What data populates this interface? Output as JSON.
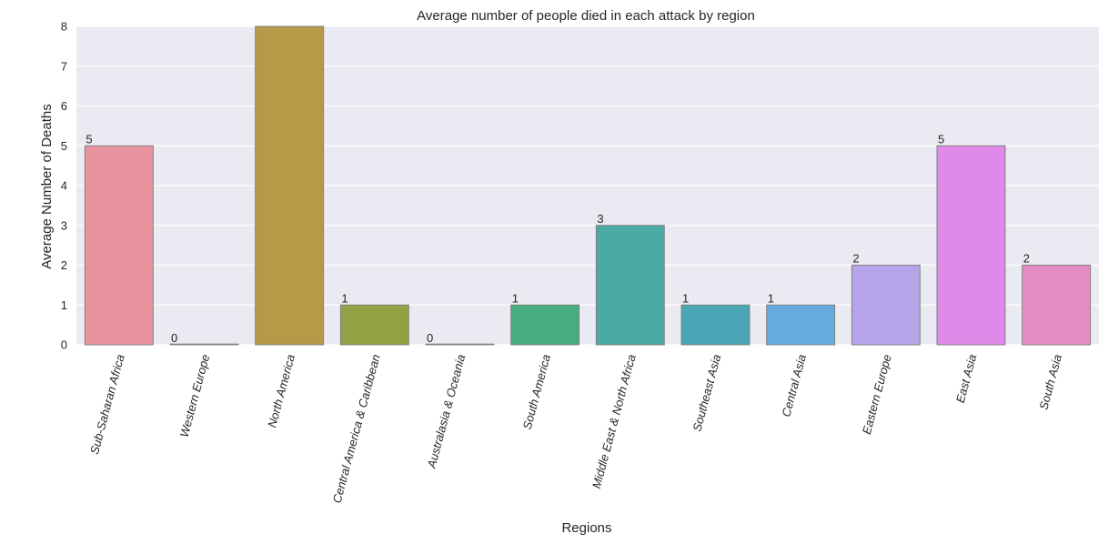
{
  "chart_data": {
    "type": "bar",
    "title": "Average number of people died in each attack by region",
    "xlabel": "Regions",
    "ylabel": "Average Number of Deaths",
    "ylim": [
      0,
      8
    ],
    "yticks": [
      0,
      1,
      2,
      3,
      4,
      5,
      6,
      7,
      8
    ],
    "grid": true,
    "categories": [
      "Sub-Saharan Africa",
      "Western Europe",
      "North America",
      "Central America & Caribbean",
      "Australasia & Oceania",
      "South America",
      "Middle East & North Africa",
      "Southeast Asia",
      "Central Asia",
      "Eastern Europe",
      "East Asia",
      "South Asia"
    ],
    "values": [
      5,
      0,
      8,
      1,
      0,
      1,
      3,
      1,
      1,
      2,
      5,
      2
    ],
    "data_labels": [
      "5",
      "0",
      "",
      "1",
      "0",
      "1",
      "3",
      "1",
      "1",
      "2",
      "5",
      "2"
    ],
    "colors": [
      "#e8939e",
      "#cccccc",
      "#b69a47",
      "#94a044",
      "#cccccc",
      "#47ad81",
      "#4aaaa4",
      "#4aa6b4",
      "#66abe0",
      "#b5a5e8",
      "#df89e8",
      "#e68cc4"
    ],
    "background": "#eaeaf2",
    "gridline_color": "#ffffff",
    "bar_edge_color": "#808080"
  }
}
